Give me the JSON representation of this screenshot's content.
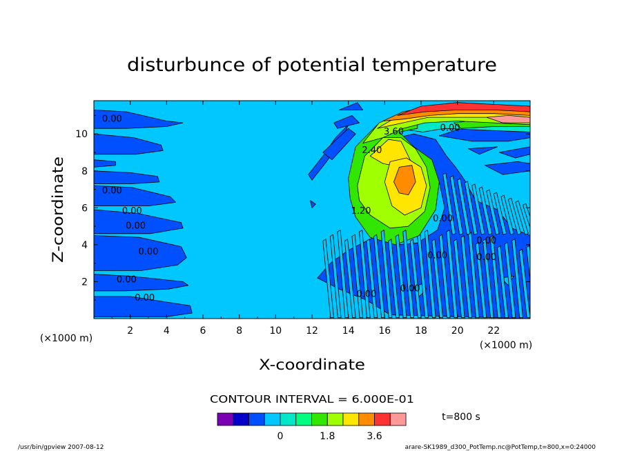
{
  "chart_data": {
    "type": "heatmap",
    "title": "disturbunce of potential temperature",
    "xlabel": "X-coordinate",
    "ylabel": "Z-coordinate",
    "x_unit": "(×1000 m)",
    "y_unit": "(×1000 m)",
    "xlim": [
      0,
      24
    ],
    "ylim": [
      0,
      11.8
    ],
    "x_ticks": [
      "2",
      "4",
      "6",
      "8",
      "10",
      "12",
      "14",
      "16",
      "18",
      "20",
      "22"
    ],
    "y_ticks": [
      "2",
      "4",
      "6",
      "8",
      "10"
    ],
    "contour_interval": "CONTOUR INTERVAL = 6.000E-01",
    "time_label": "t=800 s",
    "colorbar": {
      "colors": [
        "#7b00b4",
        "#0000c8",
        "#0050ff",
        "#00c8ff",
        "#00e8c8",
        "#00ff80",
        "#32e600",
        "#a0ff00",
        "#ffe600",
        "#ff8c00",
        "#ff3232",
        "#ff9999"
      ],
      "tick_labels": [
        {
          "text": "0",
          "boundary": 4
        },
        {
          "text": "1.8",
          "boundary": 7
        },
        {
          "text": "3.6",
          "boundary": 10
        }
      ]
    },
    "contour_labels": [
      {
        "text": "0.00",
        "x": 1.0,
        "z": 10.8
      },
      {
        "text": "0.00",
        "x": 1.0,
        "z": 6.9
      },
      {
        "text": "0.00",
        "x": 2.1,
        "z": 5.8
      },
      {
        "text": "0.00",
        "x": 2.3,
        "z": 5.0
      },
      {
        "text": "0.00",
        "x": 3.0,
        "z": 3.6
      },
      {
        "text": "0.00",
        "x": 1.8,
        "z": 2.1
      },
      {
        "text": "0.00",
        "x": 2.8,
        "z": 1.1
      },
      {
        "text": "2.40",
        "x": 15.3,
        "z": 9.1
      },
      {
        "text": "3.60",
        "x": 16.5,
        "z": 10.1
      },
      {
        "text": "1.20",
        "x": 14.7,
        "z": 5.8
      },
      {
        "text": "0.00",
        "x": 19.2,
        "z": 5.4
      },
      {
        "text": "0.00",
        "x": 21.6,
        "z": 4.2
      },
      {
        "text": "0.00",
        "x": 21.6,
        "z": 3.3
      },
      {
        "text": "0.00",
        "x": 19.6,
        "z": 10.3
      },
      {
        "text": "0.00",
        "x": 18.9,
        "z": 3.4
      },
      {
        "text": "0.00",
        "x": 17.4,
        "z": 1.6
      },
      {
        "text": "0.00",
        "x": 15.0,
        "z": 1.3
      }
    ],
    "color_levels": [
      {
        "shape": "blob",
        "level": 2,
        "points": [
          [
            0,
            11.3
          ],
          [
            1.8,
            11.2
          ],
          [
            4.0,
            10.7
          ],
          [
            4.9,
            10.6
          ],
          [
            4.0,
            10.4
          ],
          [
            1.8,
            10.3
          ],
          [
            0,
            10.3
          ]
        ]
      },
      {
        "shape": "blob",
        "level": 2,
        "points": [
          [
            0,
            10.0
          ],
          [
            2.2,
            9.8
          ],
          [
            3.7,
            9.4
          ],
          [
            3.8,
            9.1
          ],
          [
            2.3,
            8.9
          ],
          [
            0,
            8.9
          ]
        ]
      },
      {
        "shape": "blob",
        "level": 2,
        "points": [
          [
            0,
            8.6
          ],
          [
            1.2,
            8.5
          ],
          [
            1.2,
            8.3
          ],
          [
            0,
            8.2
          ]
        ]
      },
      {
        "shape": "blob",
        "level": 2,
        "points": [
          [
            0,
            8.0
          ],
          [
            2.0,
            7.9
          ],
          [
            3.5,
            7.7
          ],
          [
            3.6,
            7.4
          ],
          [
            2.1,
            7.3
          ],
          [
            0,
            7.3
          ]
        ]
      },
      {
        "shape": "blob",
        "level": 2,
        "points": [
          [
            0,
            7.2
          ],
          [
            2.1,
            7.1
          ],
          [
            4.2,
            6.6
          ],
          [
            4.5,
            6.3
          ],
          [
            3.0,
            6.1
          ],
          [
            0,
            6.1
          ]
        ]
      },
      {
        "shape": "blob",
        "level": 2,
        "points": [
          [
            0,
            5.9
          ],
          [
            2.4,
            5.7
          ],
          [
            4.8,
            5.2
          ],
          [
            4.9,
            4.9
          ],
          [
            3.1,
            4.6
          ],
          [
            0,
            4.6
          ]
        ]
      },
      {
        "shape": "blob",
        "level": 2,
        "points": [
          [
            0,
            4.5
          ],
          [
            2.5,
            4.4
          ],
          [
            4.8,
            3.9
          ],
          [
            5.1,
            3.3
          ],
          [
            4.6,
            2.9
          ],
          [
            2.6,
            2.6
          ],
          [
            0,
            2.6
          ]
        ]
      },
      {
        "shape": "blob",
        "level": 2,
        "points": [
          [
            0,
            2.4
          ],
          [
            2.0,
            2.3
          ],
          [
            4.9,
            2.0
          ],
          [
            5.2,
            1.8
          ],
          [
            4.1,
            1.6
          ],
          [
            1.7,
            1.5
          ],
          [
            0,
            1.5
          ]
        ]
      },
      {
        "shape": "blob",
        "level": 2,
        "points": [
          [
            0,
            1.2
          ],
          [
            2.0,
            1.2
          ],
          [
            5.3,
            0.7
          ],
          [
            5.4,
            0.3
          ],
          [
            4.0,
            0.1
          ],
          [
            0,
            0.1
          ]
        ]
      },
      {
        "shape": "blob",
        "level": 2,
        "points": [
          [
            11.8,
            7.8
          ],
          [
            12.6,
            8.8
          ],
          [
            13.3,
            9.8
          ],
          [
            14.0,
            10.5
          ],
          [
            13.6,
            9.6
          ],
          [
            12.8,
            8.5
          ],
          [
            12.0,
            7.5
          ]
        ]
      },
      {
        "shape": "blob",
        "level": 2,
        "points": [
          [
            12.6,
            9.0
          ],
          [
            14.0,
            10.3
          ],
          [
            14.4,
            10.0
          ],
          [
            13.1,
            8.6
          ]
        ]
      },
      {
        "shape": "blob",
        "level": 2,
        "points": [
          [
            13.2,
            10.6
          ],
          [
            14.2,
            11.0
          ],
          [
            14.6,
            10.6
          ],
          [
            13.4,
            10.3
          ]
        ]
      },
      {
        "shape": "blob",
        "level": 2,
        "points": [
          [
            13.5,
            11.3
          ],
          [
            14.5,
            11.7
          ],
          [
            14.8,
            11.3
          ]
        ]
      },
      {
        "shape": "blob",
        "level": 2,
        "points": [
          [
            11.9,
            6.4
          ],
          [
            12.0,
            6.0
          ],
          [
            12.2,
            6.2
          ]
        ]
      },
      {
        "shape": "blob",
        "level": 2,
        "points": [
          [
            12.3,
            2.2
          ],
          [
            13.5,
            1.6
          ],
          [
            15.0,
            1.0
          ],
          [
            16.3,
            0.2
          ],
          [
            24,
            0
          ],
          [
            24,
            4.5
          ],
          [
            23.0,
            4.9
          ],
          [
            22.2,
            5.9
          ],
          [
            21.0,
            6.4
          ],
          [
            20.4,
            7.5
          ],
          [
            19.9,
            8.2
          ],
          [
            19.4,
            8.8
          ],
          [
            18.8,
            9.7
          ],
          [
            17.6,
            10.0
          ],
          [
            16.7,
            9.8
          ],
          [
            17.1,
            9.2
          ],
          [
            18.2,
            8.7
          ],
          [
            19.0,
            7.4
          ],
          [
            19.3,
            6.0
          ],
          [
            18.9,
            4.8
          ],
          [
            17.8,
            4.1
          ],
          [
            16.7,
            4.0
          ],
          [
            15.8,
            4.6
          ],
          [
            15.0,
            4.2
          ],
          [
            14.0,
            3.7
          ],
          [
            13.0,
            3.0
          ]
        ]
      },
      {
        "shape": "blob",
        "level": 2,
        "points": [
          [
            19.0,
            9.9
          ],
          [
            20.8,
            9.6
          ],
          [
            22.8,
            9.6
          ],
          [
            24,
            9.8
          ],
          [
            24,
            10.2
          ],
          [
            22.2,
            10.2
          ],
          [
            20.2,
            10.3
          ]
        ]
      },
      {
        "shape": "blob",
        "level": 2,
        "points": [
          [
            22.3,
            9.0
          ],
          [
            23.4,
            9.2
          ],
          [
            24,
            9.3
          ],
          [
            24,
            8.9
          ],
          [
            23.2,
            8.7
          ]
        ]
      },
      {
        "shape": "blob",
        "level": 2,
        "points": [
          [
            21.5,
            8.3
          ],
          [
            23.3,
            8.5
          ],
          [
            24,
            8.4
          ],
          [
            24,
            8.0
          ],
          [
            22.5,
            7.8
          ]
        ]
      },
      {
        "shape": "blob",
        "level": 2,
        "points": [
          [
            20.6,
            9.2
          ],
          [
            22.2,
            9.3
          ],
          [
            21.2,
            8.9
          ]
        ]
      },
      {
        "shape": "blob",
        "level": 3,
        "points": [
          [
            17.6,
            1.7
          ],
          [
            17.9,
            1.2
          ],
          [
            18.3,
            1.6
          ],
          [
            18.1,
            1.9
          ]
        ]
      },
      {
        "shape": "blob",
        "level": 3,
        "points": [
          [
            22.4,
            2.2
          ],
          [
            22.8,
            1.8
          ],
          [
            23.1,
            2.3
          ]
        ]
      },
      {
        "shape": "blob",
        "level": 4,
        "points": [
          [
            16.7,
            10.3
          ],
          [
            17.9,
            10.7
          ],
          [
            20.0,
            10.8
          ],
          [
            22.1,
            10.7
          ],
          [
            24,
            10.6
          ],
          [
            24,
            10.1
          ],
          [
            21.5,
            10.2
          ],
          [
            19.3,
            10.3
          ],
          [
            18.1,
            10.1
          ]
        ]
      },
      {
        "shape": "blob",
        "level": 6,
        "points": [
          [
            14.0,
            7.6
          ],
          [
            14.4,
            9.3
          ],
          [
            15.6,
            10.5
          ],
          [
            16.9,
            10.9
          ],
          [
            17.8,
            10.8
          ],
          [
            17.8,
            10.3
          ],
          [
            16.8,
            10.1
          ],
          [
            17.6,
            9.3
          ],
          [
            18.6,
            8.6
          ],
          [
            19.0,
            7.4
          ],
          [
            18.8,
            5.9
          ],
          [
            17.9,
            4.5
          ],
          [
            16.6,
            4.0
          ],
          [
            15.2,
            4.4
          ],
          [
            14.4,
            5.5
          ],
          [
            14.1,
            6.5
          ]
        ]
      },
      {
        "shape": "blob",
        "level": 6,
        "points": [
          [
            19.8,
            10.6
          ],
          [
            21.5,
            10.8
          ],
          [
            24,
            10.7
          ],
          [
            24,
            10.4
          ],
          [
            22.0,
            10.4
          ],
          [
            20.2,
            10.3
          ]
        ]
      },
      {
        "shape": "blob",
        "level": 7,
        "points": [
          [
            14.5,
            7.2
          ],
          [
            14.9,
            8.8
          ],
          [
            15.9,
            9.8
          ],
          [
            16.9,
            9.8
          ],
          [
            17.7,
            9.2
          ],
          [
            18.3,
            8.2
          ],
          [
            18.5,
            7.1
          ],
          [
            18.2,
            5.8
          ],
          [
            17.3,
            5.0
          ],
          [
            16.3,
            4.9
          ],
          [
            15.2,
            5.6
          ],
          [
            14.6,
            6.4
          ]
        ]
      },
      {
        "shape": "blob",
        "level": 7,
        "points": [
          [
            14.8,
            9.5
          ],
          [
            15.7,
            10.6
          ],
          [
            16.9,
            11.1
          ],
          [
            18.3,
            11.3
          ],
          [
            20.0,
            11.2
          ],
          [
            22.0,
            11.0
          ],
          [
            24,
            10.9
          ],
          [
            24,
            10.5
          ],
          [
            22.0,
            10.6
          ],
          [
            20.0,
            10.7
          ],
          [
            18.2,
            10.6
          ],
          [
            17.0,
            10.3
          ],
          [
            15.9,
            9.8
          ]
        ]
      },
      {
        "shape": "blob",
        "level": 8,
        "points": [
          [
            15.2,
            8.8
          ],
          [
            16.2,
            9.7
          ],
          [
            16.9,
            9.6
          ],
          [
            17.4,
            8.6
          ],
          [
            16.9,
            8.2
          ],
          [
            15.9,
            8.4
          ]
        ]
      },
      {
        "shape": "blob",
        "level": 8,
        "points": [
          [
            16.0,
            7.4
          ],
          [
            16.3,
            8.5
          ],
          [
            17.2,
            8.7
          ],
          [
            18.0,
            8.2
          ],
          [
            18.3,
            7.2
          ],
          [
            18.0,
            6.0
          ],
          [
            17.1,
            5.6
          ],
          [
            16.4,
            6.1
          ]
        ]
      },
      {
        "shape": "blob",
        "level": 8,
        "points": [
          [
            15.6,
            10.3
          ],
          [
            16.8,
            11.0
          ],
          [
            18.4,
            11.3
          ],
          [
            20.5,
            11.3
          ],
          [
            22.5,
            11.2
          ],
          [
            24,
            11.1
          ],
          [
            24,
            10.8
          ],
          [
            22.0,
            10.9
          ],
          [
            20.0,
            10.9
          ],
          [
            18.4,
            10.9
          ],
          [
            17.0,
            10.6
          ]
        ]
      },
      {
        "shape": "blob",
        "level": 9,
        "points": [
          [
            16.5,
            7.4
          ],
          [
            16.8,
            8.2
          ],
          [
            17.5,
            8.3
          ],
          [
            17.7,
            7.4
          ],
          [
            17.3,
            6.7
          ],
          [
            16.8,
            6.8
          ]
        ]
      },
      {
        "shape": "blob",
        "level": 9,
        "points": [
          [
            15.9,
            10.7
          ],
          [
            17.0,
            11.2
          ],
          [
            18.5,
            11.5
          ],
          [
            20.5,
            11.5
          ],
          [
            22.5,
            11.4
          ],
          [
            24,
            11.3
          ],
          [
            24,
            11.0
          ],
          [
            22.0,
            11.1
          ],
          [
            20.0,
            11.1
          ],
          [
            18.5,
            11.0
          ],
          [
            17.0,
            10.8
          ]
        ]
      },
      {
        "shape": "blob",
        "level": 10,
        "points": [
          [
            16.7,
            11.0
          ],
          [
            18.0,
            11.5
          ],
          [
            20.0,
            11.7
          ],
          [
            22.0,
            11.6
          ],
          [
            24,
            11.5
          ],
          [
            24,
            11.2
          ],
          [
            22.0,
            11.3
          ],
          [
            20.0,
            11.3
          ],
          [
            18.2,
            11.2
          ]
        ]
      },
      {
        "shape": "blob",
        "level": 11,
        "points": [
          [
            21.6,
            10.9
          ],
          [
            22.8,
            11.0
          ],
          [
            24,
            10.9
          ],
          [
            24,
            10.6
          ],
          [
            22.5,
            10.6
          ]
        ]
      }
    ]
  },
  "footer": {
    "left": "/usr/bin/gpview   2007-08-12",
    "right": "arare-SK1989_d300_PotTemp.nc@PotTemp,t=800,x=0:24000"
  }
}
